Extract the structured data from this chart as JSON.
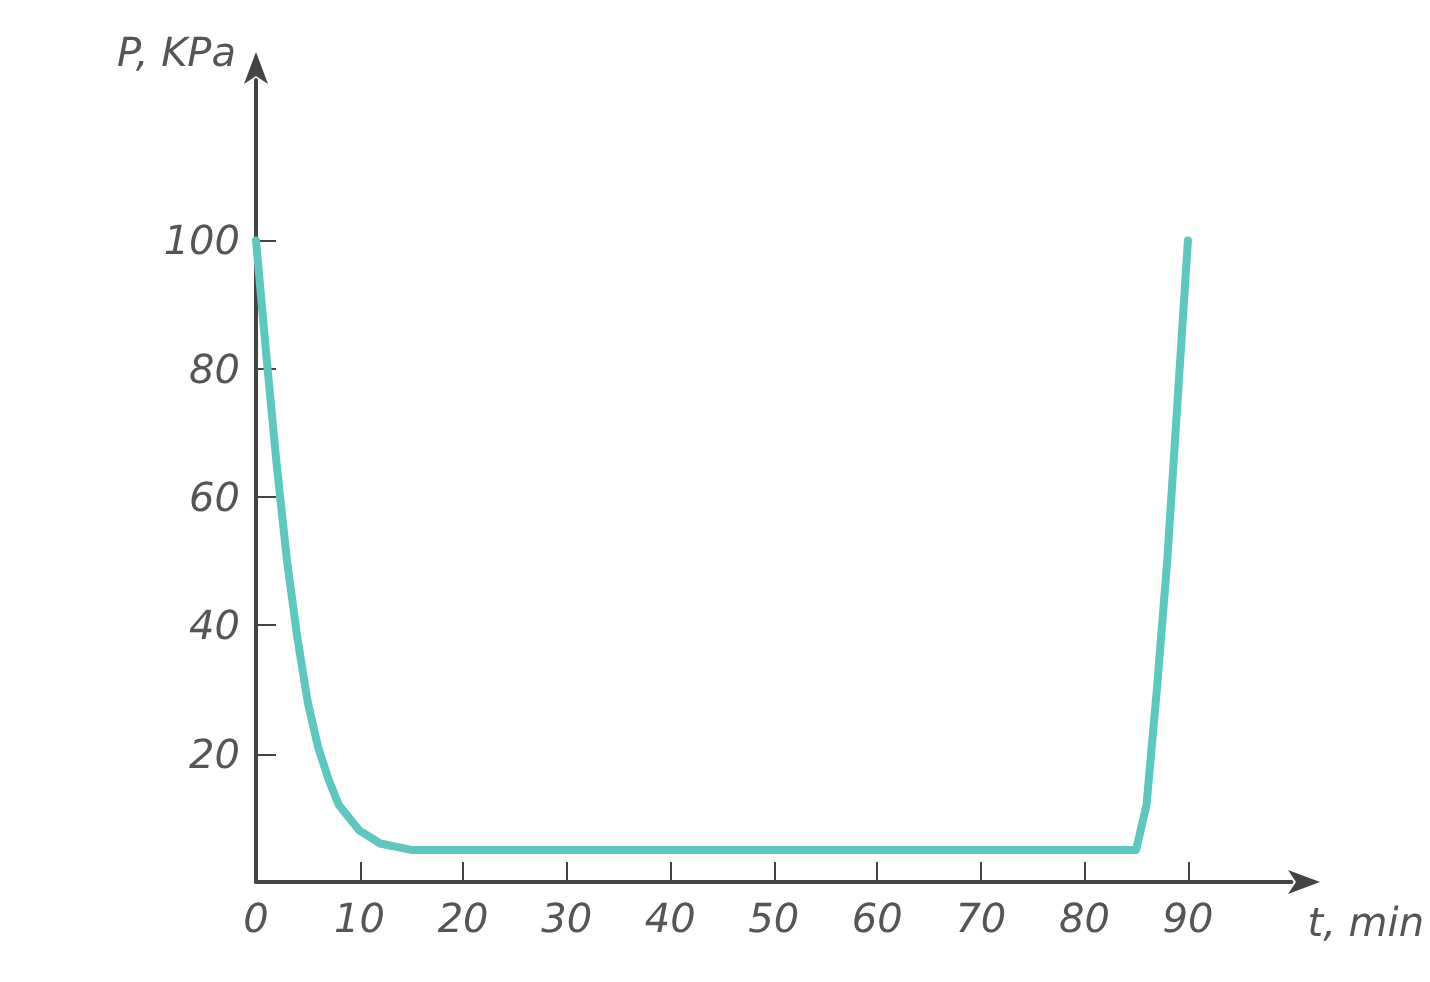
{
  "chart_data": {
    "type": "line",
    "xlabel": "t, min",
    "ylabel": "P, KPa",
    "x": [
      0,
      1,
      2,
      3,
      4,
      5,
      6,
      7,
      8,
      10,
      12,
      15,
      85,
      86,
      87,
      88,
      89,
      90
    ],
    "series": [
      {
        "color": "#5cc8c0",
        "values": [
          100,
          82,
          65,
          50,
          38,
          28,
          21,
          16,
          12,
          8,
          6,
          5,
          5,
          12,
          30,
          50,
          75,
          100
        ]
      }
    ],
    "xlim": [
      0,
      100
    ],
    "xticks": [
      0,
      10,
      20,
      30,
      40,
      50,
      60,
      70,
      80,
      90
    ],
    "ylim": [
      0,
      125
    ],
    "yticks": [
      20,
      40,
      60,
      80,
      100
    ],
    "grid": false,
    "marker": "none",
    "line_style": "solid"
  }
}
